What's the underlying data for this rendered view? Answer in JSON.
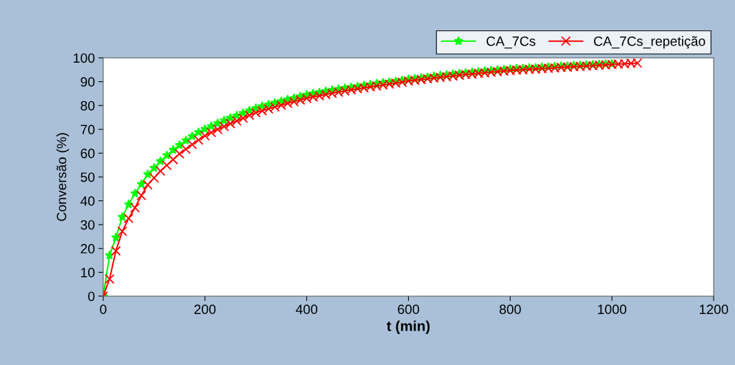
{
  "chart_data": {
    "type": "line",
    "xlabel": "t (min)",
    "ylabel": "Conversão (%)",
    "xlim": [
      0,
      1200
    ],
    "xticks": [
      0,
      200,
      400,
      600,
      800,
      1000,
      1200
    ],
    "ylim": [
      0,
      100
    ],
    "yticks": [
      0,
      10,
      20,
      30,
      40,
      50,
      60,
      70,
      80,
      90,
      100
    ],
    "grid": false,
    "legend": "top right",
    "series": [
      {
        "name": "CA_7Cs",
        "color": "#00ff00",
        "marker": "star",
        "x": [
          0,
          12.5,
          25,
          37.5,
          50,
          62.5,
          75,
          87.5,
          100,
          112.5,
          125,
          137.5,
          150,
          162.5,
          175,
          187.5,
          200,
          212.5,
          225,
          237.5,
          250,
          262.5,
          275,
          287.5,
          300,
          312.5,
          325,
          337.5,
          350,
          362.5,
          375,
          387.5,
          400,
          412.5,
          425,
          437.5,
          450,
          462.5,
          475,
          487.5,
          500,
          512.5,
          525,
          537.5,
          550,
          562.5,
          575,
          587.5,
          600,
          612.5,
          625,
          637.5,
          650,
          662.5,
          675,
          687.5,
          700,
          712.5,
          725,
          737.5,
          750,
          762.5,
          775,
          787.5,
          800,
          812.5,
          825,
          837.5,
          850,
          862.5,
          875,
          887.5,
          900,
          912.5,
          925,
          937.5,
          950,
          962.5,
          975,
          987.5,
          1000
        ],
        "values": [
          0,
          17.1,
          24.6,
          33.2,
          38.5,
          43.1,
          47.0,
          51.1,
          53.8,
          56.6,
          59.1,
          61.4,
          63.4,
          65.3,
          67.1,
          68.8,
          70.1,
          71.3,
          72.5,
          73.7,
          74.8,
          75.8,
          76.8,
          77.9,
          78.9,
          79.7,
          80.4,
          81.1,
          81.8,
          82.5,
          83.1,
          83.8,
          84.5,
          85.0,
          85.5,
          86.0,
          86.5,
          86.9,
          87.3,
          87.7,
          88.0,
          88.4,
          88.8,
          89.2,
          89.6,
          89.9,
          90.2,
          90.6,
          91.0,
          91.3,
          91.6,
          91.9,
          92.3,
          92.6,
          92.9,
          93.2,
          93.5,
          93.7,
          94.0,
          94.2,
          94.5,
          94.7,
          94.9,
          95.1,
          95.3,
          95.5,
          95.6,
          95.8,
          95.9,
          96.1,
          96.2,
          96.4,
          96.5,
          96.6,
          96.8,
          96.9,
          97.0,
          97.1,
          97.3,
          97.4,
          97.5
        ]
      },
      {
        "name": "CA_7Cs_repetição",
        "color": "#ff0000",
        "marker": "cross",
        "x": [
          0,
          12.5,
          25,
          37.5,
          50,
          62.5,
          75,
          87.5,
          100,
          112.5,
          125,
          137.5,
          150,
          162.5,
          175,
          187.5,
          200,
          212.5,
          225,
          237.5,
          250,
          262.5,
          275,
          287.5,
          300,
          312.5,
          325,
          337.5,
          350,
          362.5,
          375,
          387.5,
          400,
          412.5,
          425,
          437.5,
          450,
          462.5,
          475,
          487.5,
          500,
          512.5,
          525,
          537.5,
          550,
          562.5,
          575,
          587.5,
          600,
          612.5,
          625,
          637.5,
          650,
          662.5,
          675,
          687.5,
          700,
          712.5,
          725,
          737.5,
          750,
          762.5,
          775,
          787.5,
          800,
          812.5,
          825,
          837.5,
          850,
          862.5,
          875,
          887.5,
          900,
          912.5,
          925,
          937.5,
          950,
          962.5,
          975,
          987.5,
          1000,
          1012.5,
          1025,
          1037.5,
          1050
        ],
        "values": [
          0,
          7.2,
          19.0,
          27.2,
          32.6,
          37.1,
          42.2,
          46.7,
          49.6,
          52.5,
          54.9,
          57.3,
          59.7,
          61.7,
          63.6,
          65.5,
          67.3,
          68.7,
          70.0,
          71.2,
          72.4,
          73.5,
          74.7,
          75.9,
          77.0,
          77.8,
          78.6,
          79.4,
          80.1,
          80.9,
          81.6,
          82.3,
          83.0,
          83.6,
          84.1,
          84.6,
          85.1,
          85.6,
          86.1,
          86.6,
          87.0,
          87.4,
          87.8,
          88.2,
          88.6,
          89.0,
          89.4,
          89.8,
          90.3,
          90.6,
          90.9,
          91.2,
          91.5,
          91.8,
          92.1,
          92.4,
          92.7,
          93.0,
          93.2,
          93.5,
          93.7,
          94.0,
          94.2,
          94.5,
          94.7,
          94.9,
          95.0,
          95.2,
          95.3,
          95.5,
          95.6,
          95.8,
          96.0,
          96.1,
          96.3,
          96.4,
          96.6,
          96.7,
          96.9,
          97.0,
          97.2,
          97.4,
          97.5,
          97.7,
          97.8
        ]
      }
    ]
  }
}
